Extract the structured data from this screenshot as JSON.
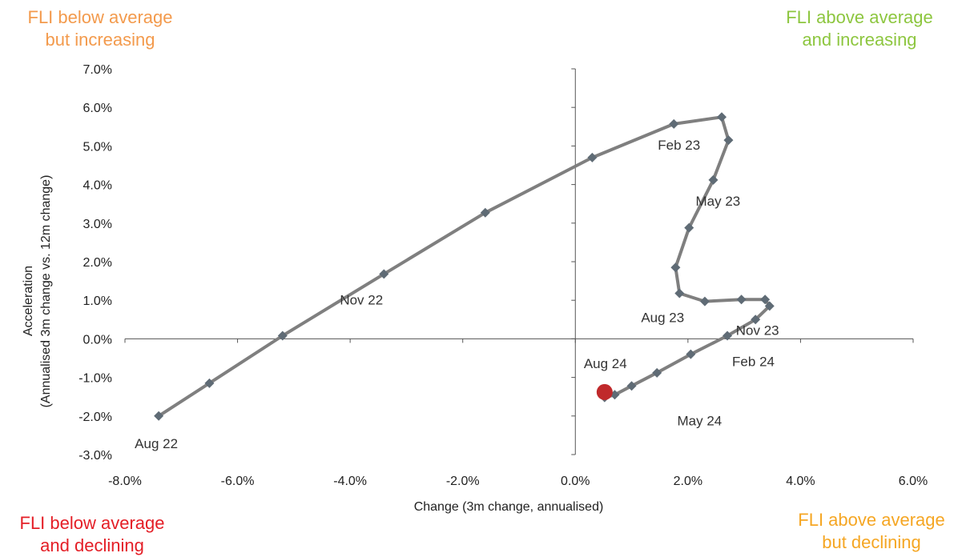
{
  "quadrants": {
    "top_left": {
      "line1": "FLI below average",
      "line2": "but increasing",
      "color": "#F39A4C"
    },
    "top_right": {
      "line1": "FLI above average",
      "line2": "and increasing",
      "color": "#8DC63F"
    },
    "bottom_left": {
      "line1": "FLI below average",
      "line2": "and declining",
      "color": "#E41E26"
    },
    "bottom_right": {
      "line1": "FLI above average",
      "line2": "but declining",
      "color": "#F5A623"
    }
  },
  "chart_data": {
    "type": "line",
    "xlabel": "Change (3m change, annualised)",
    "ylabel_line1": "Acceleration",
    "ylabel_line2": "(Annualised 3m change vs. 12m change)",
    "xlim": [
      -8,
      6
    ],
    "ylim": [
      -3,
      7
    ],
    "x_ticks": [
      -8,
      -6,
      -4,
      -2,
      0,
      2,
      4,
      6
    ],
    "y_ticks": [
      -3,
      -2,
      -1,
      0,
      1,
      2,
      3,
      4,
      5,
      6,
      7
    ],
    "x_tick_labels": [
      "-8.0%",
      "-6.0%",
      "-4.0%",
      "-2.0%",
      "0.0%",
      "2.0%",
      "4.0%",
      "6.0%"
    ],
    "y_tick_labels": [
      "-3.0%",
      "-2.0%",
      "-1.0%",
      "0.0%",
      "1.0%",
      "2.0%",
      "3.0%",
      "4.0%",
      "5.0%",
      "6.0%",
      "7.0%"
    ],
    "line_color": "#7F7F7F",
    "marker_color": "#5F6B75",
    "latest_marker_color": "#C0292B",
    "points": [
      {
        "x": -7.4,
        "y": -2.0,
        "label": "Aug 22"
      },
      {
        "x": -6.5,
        "y": -1.15
      },
      {
        "x": -5.2,
        "y": 0.08
      },
      {
        "x": -3.4,
        "y": 1.68,
        "label": "Nov 22"
      },
      {
        "x": -1.6,
        "y": 3.27
      },
      {
        "x": 0.3,
        "y": 4.7
      },
      {
        "x": 1.75,
        "y": 5.57,
        "label": "Feb 23"
      },
      {
        "x": 2.6,
        "y": 5.75
      },
      {
        "x": 2.72,
        "y": 5.15
      },
      {
        "x": 2.45,
        "y": 4.12,
        "label": "May 23"
      },
      {
        "x": 2.02,
        "y": 2.88
      },
      {
        "x": 1.78,
        "y": 1.85
      },
      {
        "x": 1.85,
        "y": 1.18,
        "label": "Aug 23"
      },
      {
        "x": 2.3,
        "y": 0.97
      },
      {
        "x": 2.95,
        "y": 1.02
      },
      {
        "x": 3.37,
        "y": 1.02
      },
      {
        "x": 3.45,
        "y": 0.85,
        "label": "Nov 23"
      },
      {
        "x": 3.2,
        "y": 0.5
      },
      {
        "x": 2.7,
        "y": 0.08,
        "label": "Feb 24"
      },
      {
        "x": 2.05,
        "y": -0.4
      },
      {
        "x": 1.45,
        "y": -0.88
      },
      {
        "x": 1.0,
        "y": -1.22
      },
      {
        "x": 0.7,
        "y": -1.45,
        "label": "May 24"
      },
      {
        "x": 0.52,
        "y": -1.52
      },
      {
        "x": 0.52,
        "y": -1.38,
        "label": "Aug 24",
        "latest": true
      }
    ]
  }
}
